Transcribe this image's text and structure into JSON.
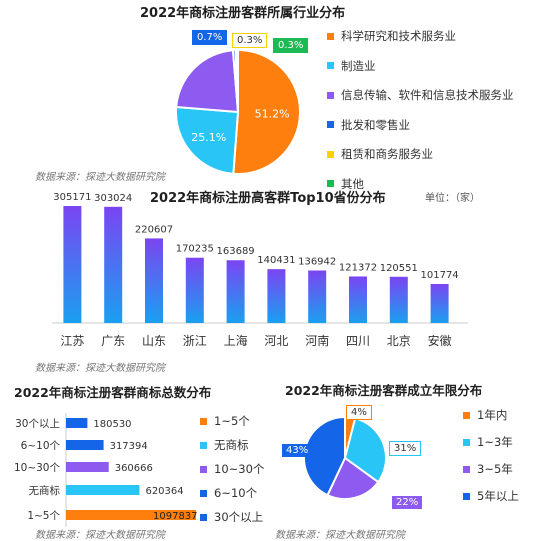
{
  "source_text": "数据来源：探迹大数据研究院",
  "chart_data": [
    {
      "type": "pie",
      "title": "2022年商标注册客群所属行业分布",
      "categories": [
        "科学研究和技术服务业",
        "制造业",
        "信息传输、软件和信息技术服务业",
        "批发和零售业",
        "租赁和商务服务业",
        "其他"
      ],
      "values": [
        51.2,
        25.1,
        22.4,
        0.7,
        0.3,
        0.3
      ],
      "value_labels": [
        "51.2%",
        "25.1%",
        "22.4%",
        "0.7%",
        "0.3%",
        "0.3%"
      ],
      "colors": [
        "#FF7F0E",
        "#29C5F6",
        "#8E5BF0",
        "#1565E8",
        "#F5D300",
        "#1DB954"
      ],
      "legend": "right"
    },
    {
      "type": "bar",
      "title": "2022年商标注册高客群Top10省份分布",
      "unit_label": "单位：（家）",
      "categories": [
        "江苏",
        "广东",
        "山东",
        "浙江",
        "上海",
        "河北",
        "河南",
        "四川",
        "北京",
        "安徽"
      ],
      "values": [
        305171,
        303024,
        220607,
        170235,
        163689,
        140431,
        136942,
        121372,
        120551,
        101774
      ],
      "value_labels": [
        "305171",
        "303024",
        "220607",
        "170235",
        "163689",
        "140431",
        "136942",
        "121372",
        "120551",
        "101774"
      ],
      "ylim": [
        0,
        305171
      ],
      "color_top": "#7B45F2",
      "color_bottom": "#1AA0F0",
      "grid": false
    },
    {
      "type": "bar",
      "orientation": "horizontal",
      "title": "2022年商标注册客群商标总数分布",
      "categories": [
        "30个以上",
        "6~10个",
        "10~30个",
        "无商标",
        "1~5个"
      ],
      "values": [
        180530,
        317394,
        360666,
        620364,
        1097837
      ],
      "value_labels": [
        "180530",
        "317394",
        "360666",
        "620364",
        "1097837"
      ],
      "colors": [
        "#1565E8",
        "#1565E8",
        "#8E5BF0",
        "#29C5F6",
        "#FF7F0E"
      ],
      "legend_labels": [
        "1~5个",
        "无商标",
        "10~30个",
        "6~10个",
        "30个以上"
      ],
      "legend_colors": [
        "#FF7F0E",
        "#29C5F6",
        "#8E5BF0",
        "#1565E8",
        "#1565E8"
      ],
      "xlim": [
        0,
        1097837
      ],
      "legend": "right"
    },
    {
      "type": "pie",
      "title": "2022年商标注册客群成立年限分布",
      "categories": [
        "1年内",
        "1~3年",
        "3~5年",
        "5年以上"
      ],
      "values": [
        4,
        31,
        22,
        43
      ],
      "value_labels": [
        "4%",
        "31%",
        "22%",
        "43%"
      ],
      "colors": [
        "#FF7F0E",
        "#29C5F6",
        "#8E5BF0",
        "#1565E8"
      ],
      "legend": "right"
    }
  ]
}
